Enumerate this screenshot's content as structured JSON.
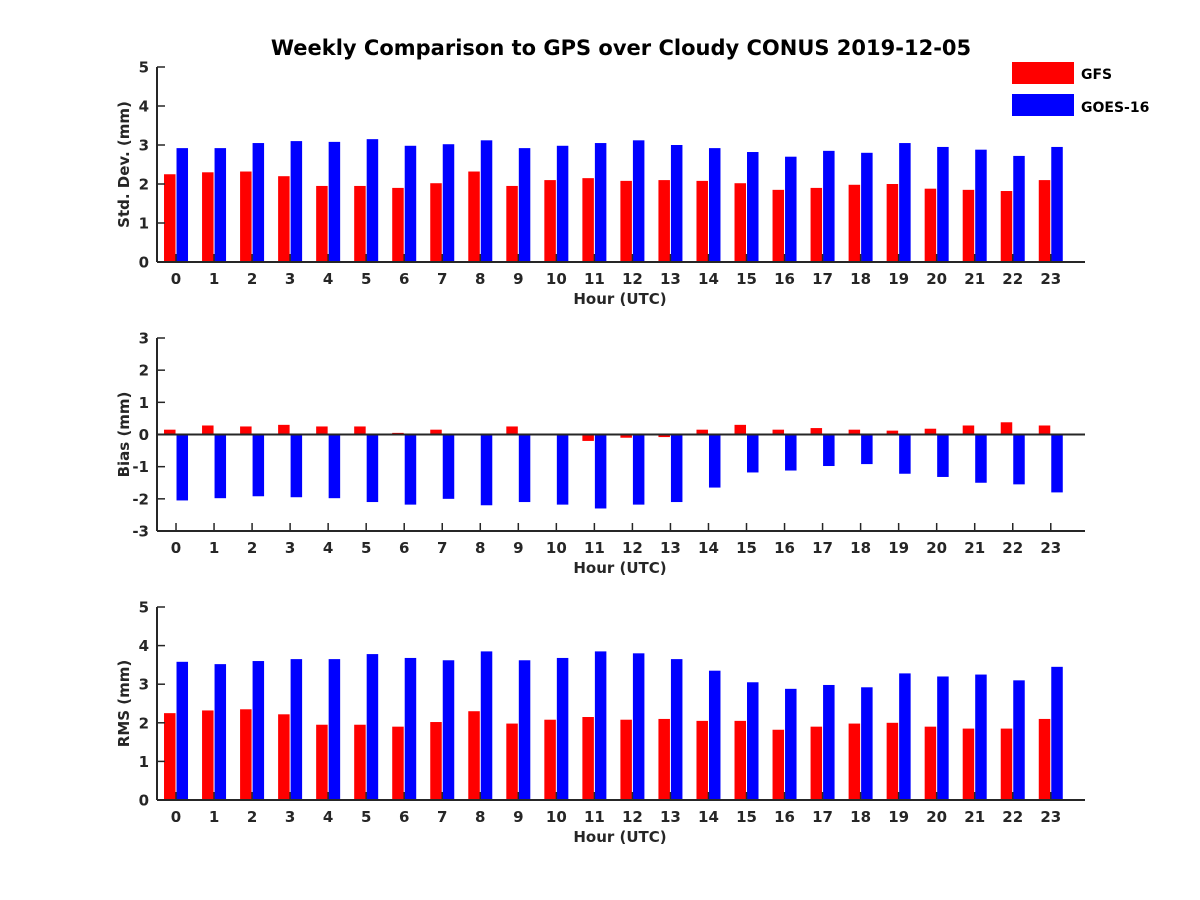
{
  "title": "Weekly Comparison to GPS over Cloudy CONUS 2019-12-05",
  "legend": [
    {
      "name": "GFS",
      "color": "#ff0000"
    },
    {
      "name": "GOES-16",
      "color": "#0000ff"
    }
  ],
  "chart_data": [
    {
      "type": "bar",
      "ylabel": "Std. Dev. (mm)",
      "xlabel": "Hour (UTC)",
      "ylim": [
        0,
        5
      ],
      "yticks": [
        0,
        1,
        2,
        3,
        4,
        5
      ],
      "categories": [
        "0",
        "1",
        "2",
        "3",
        "4",
        "5",
        "6",
        "7",
        "8",
        "9",
        "10",
        "11",
        "12",
        "13",
        "14",
        "15",
        "16",
        "17",
        "18",
        "19",
        "20",
        "21",
        "22",
        "23"
      ],
      "series": [
        {
          "name": "GFS",
          "values": [
            2.25,
            2.3,
            2.32,
            2.2,
            1.95,
            1.95,
            1.9,
            2.02,
            2.32,
            1.95,
            2.1,
            2.15,
            2.08,
            2.1,
            2.08,
            2.02,
            1.85,
            1.9,
            1.98,
            2.0,
            1.88,
            1.85,
            1.82,
            2.1
          ]
        },
        {
          "name": "GOES-16",
          "values": [
            2.92,
            2.92,
            3.05,
            3.1,
            3.08,
            3.15,
            2.98,
            3.02,
            3.12,
            2.92,
            2.98,
            3.05,
            3.12,
            3.0,
            2.92,
            2.82,
            2.7,
            2.85,
            2.8,
            3.05,
            2.95,
            2.88,
            2.72,
            2.95
          ]
        }
      ]
    },
    {
      "type": "bar",
      "ylabel": "Bias (mm)",
      "xlabel": "Hour (UTC)",
      "ylim": [
        -3,
        3
      ],
      "yticks": [
        -3,
        -2,
        -1,
        0,
        1,
        2,
        3
      ],
      "categories": [
        "0",
        "1",
        "2",
        "3",
        "4",
        "5",
        "6",
        "7",
        "8",
        "9",
        "10",
        "11",
        "12",
        "13",
        "14",
        "15",
        "16",
        "17",
        "18",
        "19",
        "20",
        "21",
        "22",
        "23"
      ],
      "series": [
        {
          "name": "GFS",
          "values": [
            0.15,
            0.28,
            0.25,
            0.3,
            0.25,
            0.25,
            0.05,
            0.15,
            0.02,
            0.25,
            0.0,
            -0.2,
            -0.1,
            -0.08,
            0.15,
            0.3,
            0.15,
            0.2,
            0.15,
            0.12,
            0.18,
            0.28,
            0.38,
            0.28
          ]
        },
        {
          "name": "GOES-16",
          "values": [
            -2.05,
            -1.98,
            -1.92,
            -1.95,
            -1.98,
            -2.1,
            -2.18,
            -2.0,
            -2.2,
            -2.1,
            -2.18,
            -2.3,
            -2.18,
            -2.1,
            -1.65,
            -1.18,
            -1.12,
            -0.98,
            -0.92,
            -1.22,
            -1.32,
            -1.5,
            -1.55,
            -1.8
          ]
        }
      ]
    },
    {
      "type": "bar",
      "ylabel": "RMS (mm)",
      "xlabel": "Hour (UTC)",
      "ylim": [
        0,
        5
      ],
      "yticks": [
        0,
        1,
        2,
        3,
        4,
        5
      ],
      "categories": [
        "0",
        "1",
        "2",
        "3",
        "4",
        "5",
        "6",
        "7",
        "8",
        "9",
        "10",
        "11",
        "12",
        "13",
        "14",
        "15",
        "16",
        "17",
        "18",
        "19",
        "20",
        "21",
        "22",
        "23"
      ],
      "series": [
        {
          "name": "GFS",
          "values": [
            2.25,
            2.32,
            2.35,
            2.22,
            1.95,
            1.95,
            1.9,
            2.02,
            2.3,
            1.98,
            2.08,
            2.15,
            2.08,
            2.1,
            2.05,
            2.05,
            1.82,
            1.9,
            1.98,
            2.0,
            1.9,
            1.85,
            1.85,
            2.1
          ]
        },
        {
          "name": "GOES-16",
          "values": [
            3.58,
            3.52,
            3.6,
            3.65,
            3.65,
            3.78,
            3.68,
            3.62,
            3.85,
            3.62,
            3.68,
            3.85,
            3.8,
            3.65,
            3.35,
            3.05,
            2.88,
            2.98,
            2.92,
            3.28,
            3.2,
            3.25,
            3.1,
            3.45
          ]
        }
      ]
    }
  ]
}
